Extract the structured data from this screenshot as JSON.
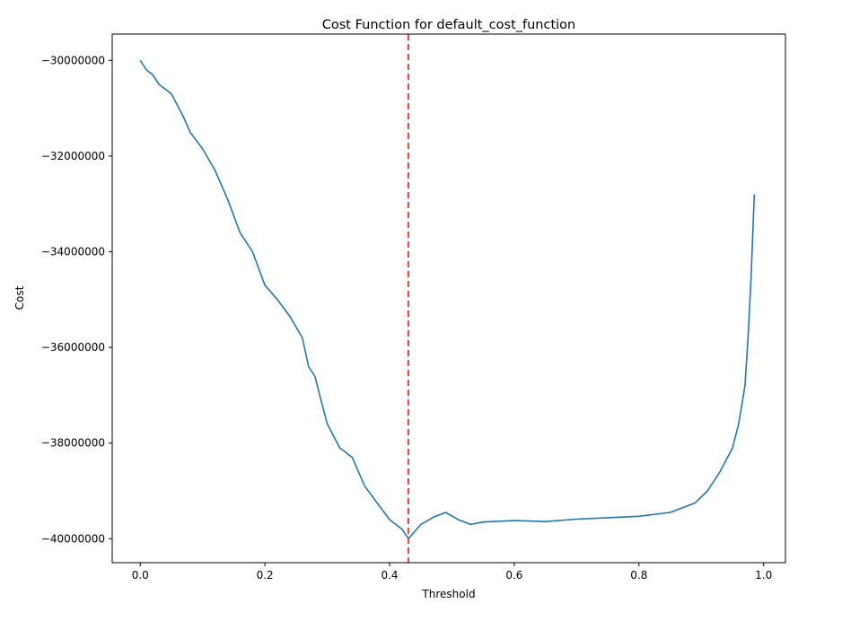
{
  "chart_data": {
    "type": "line",
    "title": "Cost Function for default_cost_function",
    "xlabel": "Threshold",
    "ylabel": "Cost",
    "xlim": [
      -0.045,
      1.035
    ],
    "ylim": [
      -40500000,
      -29450000
    ],
    "xticks": [
      0.0,
      0.2,
      0.4,
      0.6,
      0.8,
      1.0
    ],
    "xtick_labels": [
      "0.0",
      "0.2",
      "0.4",
      "0.6",
      "0.8",
      "1.0"
    ],
    "yticks": [
      -30000000,
      -32000000,
      -34000000,
      -36000000,
      -38000000,
      -40000000
    ],
    "ytick_labels": [
      "−30000000",
      "−32000000",
      "−34000000",
      "−36000000",
      "−38000000",
      "−40000000"
    ],
    "grid": false,
    "series": [
      {
        "color": "#1f77b4",
        "x": [
          0.0,
          0.01,
          0.02,
          0.03,
          0.05,
          0.07,
          0.08,
          0.1,
          0.12,
          0.14,
          0.16,
          0.18,
          0.2,
          0.22,
          0.24,
          0.26,
          0.27,
          0.28,
          0.29,
          0.3,
          0.32,
          0.34,
          0.36,
          0.38,
          0.4,
          0.42,
          0.43,
          0.45,
          0.47,
          0.49,
          0.51,
          0.53,
          0.55,
          0.6,
          0.65,
          0.7,
          0.75,
          0.8,
          0.85,
          0.87,
          0.89,
          0.91,
          0.93,
          0.95,
          0.96,
          0.97,
          0.975,
          0.98,
          0.985
        ],
        "y": [
          -30000000,
          -30200000,
          -30300000,
          -30500000,
          -30700000,
          -31200000,
          -31500000,
          -31850000,
          -32300000,
          -32900000,
          -33600000,
          -34000000,
          -34700000,
          -35000000,
          -35350000,
          -35800000,
          -36400000,
          -36600000,
          -37100000,
          -37600000,
          -38100000,
          -38300000,
          -38900000,
          -39250000,
          -39600000,
          -39800000,
          -40000000,
          -39700000,
          -39550000,
          -39450000,
          -39600000,
          -39700000,
          -39650000,
          -39620000,
          -39640000,
          -39590000,
          -39560000,
          -39530000,
          -39450000,
          -39350000,
          -39250000,
          -39000000,
          -38600000,
          -38100000,
          -37600000,
          -36800000,
          -35800000,
          -34500000,
          -32800000
        ]
      },
      {
        "type": "vline",
        "x": 0.43,
        "color": "#e8312a",
        "style": "dashed"
      }
    ]
  }
}
